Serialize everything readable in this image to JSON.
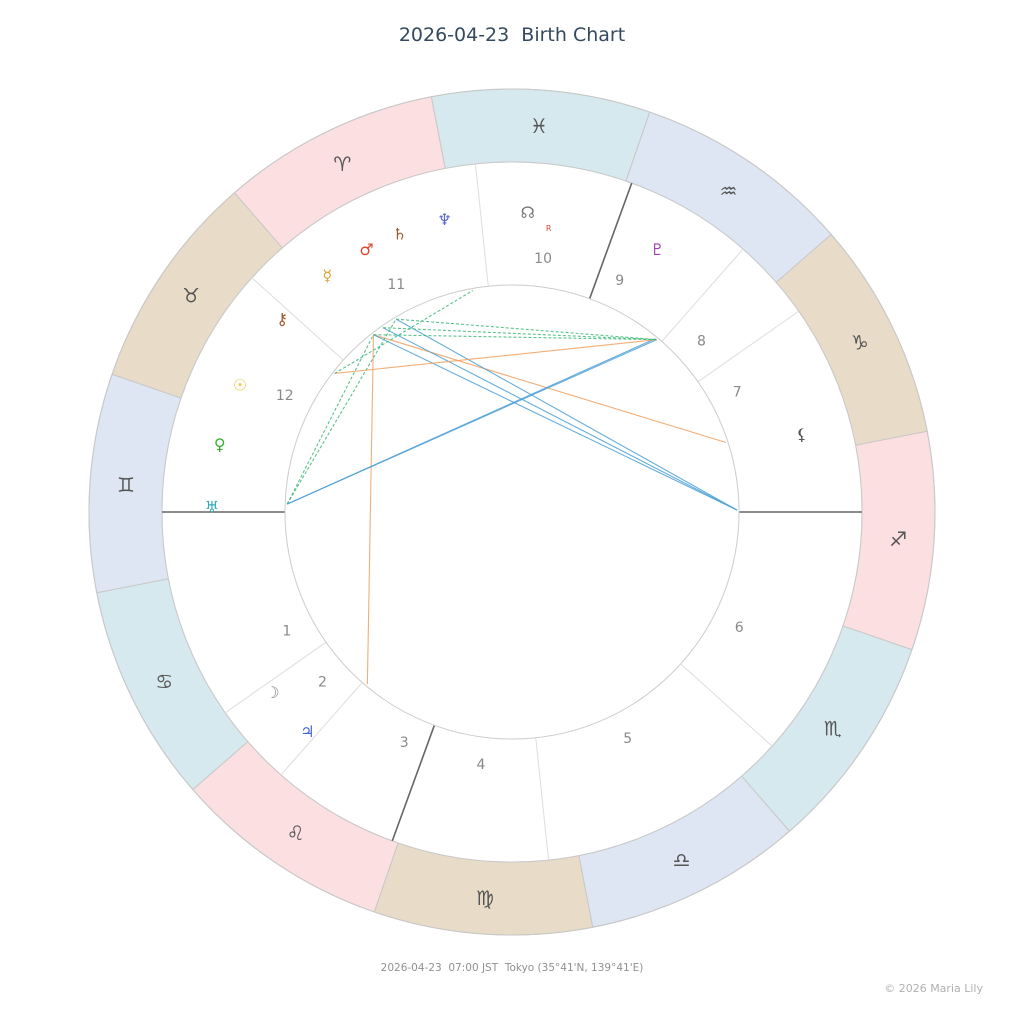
{
  "title": "2026-04-23  Birth Chart",
  "footer": "2026-04-23  07:00 JST  Tokyo (35°41'N, 139°41'E)",
  "copyright": "© 2026 Maria Lily",
  "colors": {
    "fire": "#fbdfe1",
    "earth": "#e8dcc8",
    "air": "#dde6f2",
    "water": "#d6e9ef",
    "house_line": "#dddddd",
    "angle_line": "#666666",
    "aspect_blue": "#4a9fd6",
    "aspect_orange": "#f0a060",
    "aspect_red": "#e0442c",
    "aspect_green": "#3cb878"
  },
  "zodiac_signs": [
    {
      "name": "pisces",
      "glyph": "♓",
      "element": "water",
      "angle": 90
    },
    {
      "name": "aquarius",
      "glyph": "♒",
      "element": "air",
      "angle": 60
    },
    {
      "name": "capricorn",
      "glyph": "♑",
      "element": "earth",
      "angle": 30
    },
    {
      "name": "sagittarius",
      "glyph": "♐",
      "element": "fire",
      "angle": 0
    },
    {
      "name": "scorpio",
      "glyph": "♏",
      "element": "water",
      "angle": -30
    },
    {
      "name": "libra",
      "glyph": "♎",
      "element": "air",
      "angle": -60
    },
    {
      "name": "virgo",
      "glyph": "♍",
      "element": "earth",
      "angle": -90
    },
    {
      "name": "leo",
      "glyph": "♌",
      "element": "fire",
      "angle": -120
    },
    {
      "name": "cancer",
      "glyph": "♋",
      "element": "water",
      "angle": -150
    },
    {
      "name": "gemini",
      "glyph": "♊",
      "element": "air",
      "angle": 180
    },
    {
      "name": "taurus",
      "glyph": "♉",
      "element": "earth",
      "angle": 150
    },
    {
      "name": "aries",
      "glyph": "♈",
      "element": "fire",
      "angle": 120
    }
  ],
  "house_cusps": [
    {
      "number": "1",
      "cusp_angle": 180,
      "angle": 208
    },
    {
      "number": "2",
      "cusp_angle": 215,
      "angle": 222
    },
    {
      "number": "3",
      "cusp_angle": 228.7,
      "angle": 245
    },
    {
      "number": "4",
      "cusp_angle": 250,
      "angle": 263
    },
    {
      "number": "5",
      "cusp_angle": 276,
      "angle": 297
    },
    {
      "number": "6",
      "cusp_angle": 318,
      "angle": 333
    },
    {
      "number": "7",
      "cusp_angle": 0,
      "angle": 28
    },
    {
      "number": "8",
      "cusp_angle": 35,
      "angle": 42
    },
    {
      "number": "9",
      "cusp_angle": 48.7,
      "angle": 65
    },
    {
      "number": "10",
      "cusp_angle": 70,
      "angle": 83
    },
    {
      "number": "11",
      "cusp_angle": 96,
      "angle": 117
    },
    {
      "number": "12",
      "cusp_angle": 138,
      "angle": 153
    }
  ],
  "angle_axes": [
    0,
    70
  ],
  "planets": [
    {
      "name": "north-node",
      "glyph": "☊",
      "color": "#777777",
      "angle": 87,
      "retrograde": "R"
    },
    {
      "name": "neptune",
      "glyph": "♆",
      "color": "#5566cc",
      "angle": 103
    },
    {
      "name": "saturn",
      "glyph": "♄",
      "color": "#9b5a2b",
      "angle": 112
    },
    {
      "name": "mars",
      "glyph": "♂",
      "color": "#e0442c",
      "angle": 119
    },
    {
      "name": "mercury",
      "glyph": "☿",
      "color": "#e0a030",
      "angle": 128
    },
    {
      "name": "chiron",
      "glyph": "⚷",
      "color": "#9b5a2b",
      "angle": 140
    },
    {
      "name": "sun",
      "glyph": "☉",
      "color": "#e8c840",
      "angle": 155
    },
    {
      "name": "venus",
      "glyph": "♀",
      "color": "#3cb030",
      "angle": 167
    },
    {
      "name": "uranus",
      "glyph": "♅",
      "color": "#33aabb",
      "angle": 179
    },
    {
      "name": "moon",
      "glyph": "☽",
      "color": "#888888",
      "angle": 217
    },
    {
      "name": "jupiter",
      "glyph": "♃",
      "color": "#4466dd",
      "angle": 227
    },
    {
      "name": "pluto",
      "glyph": "♇",
      "color": "#9b3fae",
      "angle": 61
    },
    {
      "name": "lilith",
      "glyph": "⚸",
      "color": "#555555",
      "angle": 15
    }
  ],
  "aspects": [
    {
      "from": 128,
      "to": 18,
      "color": "aspect_orange",
      "dashed": false
    },
    {
      "from": 128,
      "to": 230,
      "color": "aspect_orange",
      "dashed": false
    },
    {
      "from": 128,
      "to": 0.5,
      "color": "aspect_blue",
      "dashed": false
    },
    {
      "from": 125,
      "to": 0.5,
      "color": "aspect_blue",
      "dashed": false
    },
    {
      "from": 121,
      "to": 0.5,
      "color": "aspect_blue",
      "dashed": false
    },
    {
      "from": 178,
      "to": 50,
      "color": "aspect_blue",
      "dashed": false
    },
    {
      "from": 178,
      "to": 50.4,
      "color": "aspect_blue",
      "dashed": false
    },
    {
      "from": 142,
      "to": 50,
      "color": "aspect_orange",
      "dashed": false
    },
    {
      "from": 128,
      "to": 50,
      "color": "aspect_green",
      "dashed": true
    },
    {
      "from": 121,
      "to": 50,
      "color": "aspect_green",
      "dashed": true
    },
    {
      "from": 125,
      "to": 50,
      "color": "aspect_green",
      "dashed": true
    },
    {
      "from": 178,
      "to": 121,
      "color": "aspect_green",
      "dashed": true
    },
    {
      "from": 178,
      "to": 128,
      "color": "aspect_green",
      "dashed": true
    },
    {
      "from": 142,
      "to": 100,
      "color": "aspect_green",
      "dashed": true
    }
  ]
}
